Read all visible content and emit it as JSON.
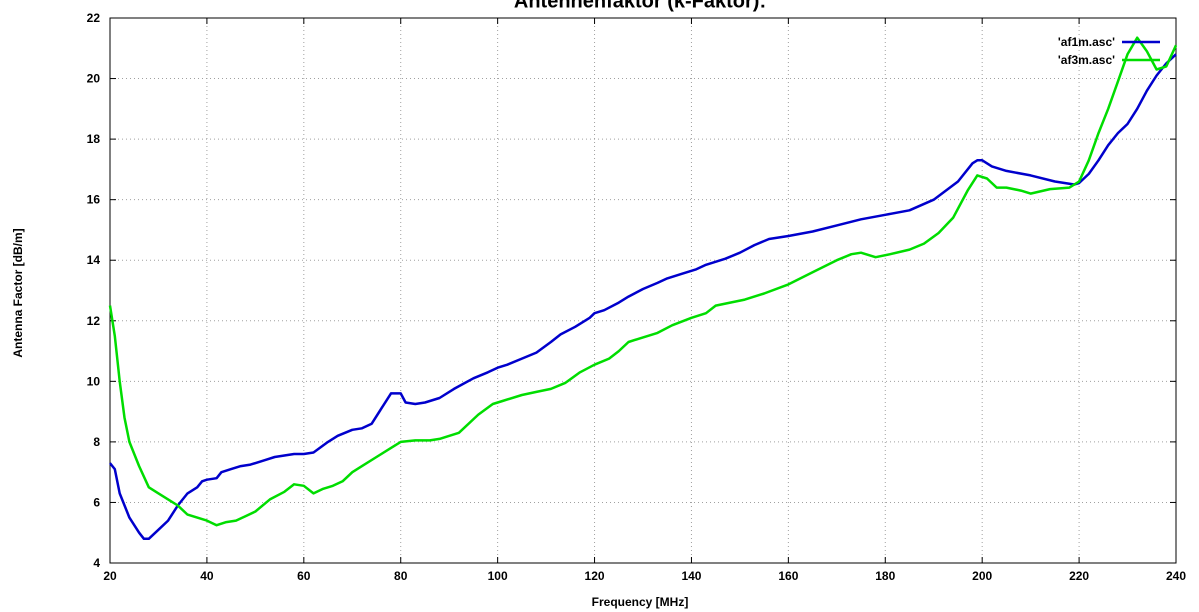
{
  "chart_data": {
    "type": "line",
    "title": "Antennenfaktor (k-Faktor):",
    "xlabel": "Frequency [MHz]",
    "ylabel": "Antenna Factor [dB/m]",
    "xlim": [
      20,
      240
    ],
    "ylim": [
      4,
      22
    ],
    "xticks": [
      20,
      40,
      60,
      80,
      100,
      120,
      140,
      160,
      180,
      200,
      220,
      240
    ],
    "yticks": [
      4,
      6,
      8,
      10,
      12,
      14,
      16,
      18,
      20,
      22
    ],
    "grid": true,
    "legend_position": "top-right",
    "series": [
      {
        "name": "'af1m.asc'",
        "color": "#0000cc",
        "x": [
          20,
          21,
          22,
          24,
          26,
          27,
          28,
          30,
          32,
          34,
          36,
          38,
          39,
          40,
          42,
          43,
          45,
          47,
          49,
          52,
          54,
          56,
          58,
          60,
          62,
          65,
          67,
          70,
          72,
          74,
          76,
          78,
          80,
          81,
          83,
          85,
          88,
          91,
          95,
          98,
          100,
          102,
          105,
          108,
          111,
          113,
          116,
          119,
          120,
          122,
          125,
          127,
          130,
          133,
          135,
          138,
          141,
          143,
          147,
          150,
          153,
          156,
          160,
          165,
          170,
          175,
          180,
          185,
          190,
          195,
          198,
          199,
          200,
          202,
          205,
          210,
          215,
          219,
          220,
          222,
          224,
          226,
          228,
          230,
          232,
          234,
          236,
          238,
          240
        ],
        "y": [
          7.3,
          7.1,
          6.3,
          5.5,
          5.0,
          4.8,
          4.8,
          5.1,
          5.4,
          5.9,
          6.3,
          6.5,
          6.7,
          6.75,
          6.8,
          7.0,
          7.1,
          7.2,
          7.25,
          7.4,
          7.5,
          7.55,
          7.6,
          7.6,
          7.65,
          8.0,
          8.2,
          8.4,
          8.45,
          8.6,
          9.1,
          9.6,
          9.6,
          9.3,
          9.25,
          9.3,
          9.45,
          9.75,
          10.1,
          10.3,
          10.45,
          10.55,
          10.75,
          10.95,
          11.3,
          11.55,
          11.8,
          12.1,
          12.25,
          12.35,
          12.6,
          12.8,
          13.05,
          13.25,
          13.4,
          13.55,
          13.7,
          13.85,
          14.05,
          14.25,
          14.5,
          14.7,
          14.8,
          14.95,
          15.15,
          15.35,
          15.5,
          15.65,
          16.0,
          16.6,
          17.2,
          17.3,
          17.3,
          17.1,
          16.95,
          16.8,
          16.6,
          16.5,
          16.55,
          16.85,
          17.3,
          17.8,
          18.2,
          18.5,
          19.0,
          19.6,
          20.1,
          20.5,
          20.8
        ]
      },
      {
        "name": "'af3m.asc'",
        "color": "#00dd00",
        "x": [
          20,
          21,
          22,
          23,
          24,
          26,
          28,
          30,
          32,
          34,
          36,
          38,
          40,
          42,
          44,
          46,
          48,
          50,
          53,
          56,
          58,
          60,
          62,
          64,
          66,
          68,
          70,
          72,
          75,
          78,
          80,
          83,
          86,
          88,
          92,
          96,
          99,
          101,
          105,
          108,
          111,
          114,
          117,
          120,
          123,
          125,
          127,
          130,
          133,
          136,
          140,
          143,
          145,
          148,
          151,
          155,
          160,
          165,
          170,
          173,
          175,
          178,
          181,
          185,
          188,
          191,
          194,
          197,
          199,
          201,
          203,
          205,
          208,
          210,
          214,
          218,
          220,
          222,
          224,
          226,
          228,
          230,
          232,
          234,
          236,
          238,
          240
        ],
        "y": [
          12.5,
          11.5,
          10.0,
          8.8,
          8.0,
          7.2,
          6.5,
          6.3,
          6.1,
          5.9,
          5.6,
          5.5,
          5.4,
          5.25,
          5.35,
          5.4,
          5.55,
          5.7,
          6.1,
          6.35,
          6.6,
          6.55,
          6.3,
          6.45,
          6.55,
          6.7,
          7.0,
          7.2,
          7.5,
          7.8,
          8.0,
          8.05,
          8.05,
          8.1,
          8.3,
          8.9,
          9.25,
          9.35,
          9.55,
          9.65,
          9.75,
          9.95,
          10.3,
          10.55,
          10.75,
          11.0,
          11.3,
          11.45,
          11.6,
          11.85,
          12.1,
          12.25,
          12.5,
          12.6,
          12.7,
          12.9,
          13.2,
          13.6,
          14.0,
          14.2,
          14.25,
          14.1,
          14.2,
          14.35,
          14.55,
          14.9,
          15.4,
          16.3,
          16.8,
          16.7,
          16.4,
          16.4,
          16.3,
          16.2,
          16.35,
          16.4,
          16.6,
          17.3,
          18.2,
          19.0,
          19.9,
          20.8,
          21.35,
          20.9,
          20.3,
          20.4,
          21.1
        ]
      }
    ]
  }
}
